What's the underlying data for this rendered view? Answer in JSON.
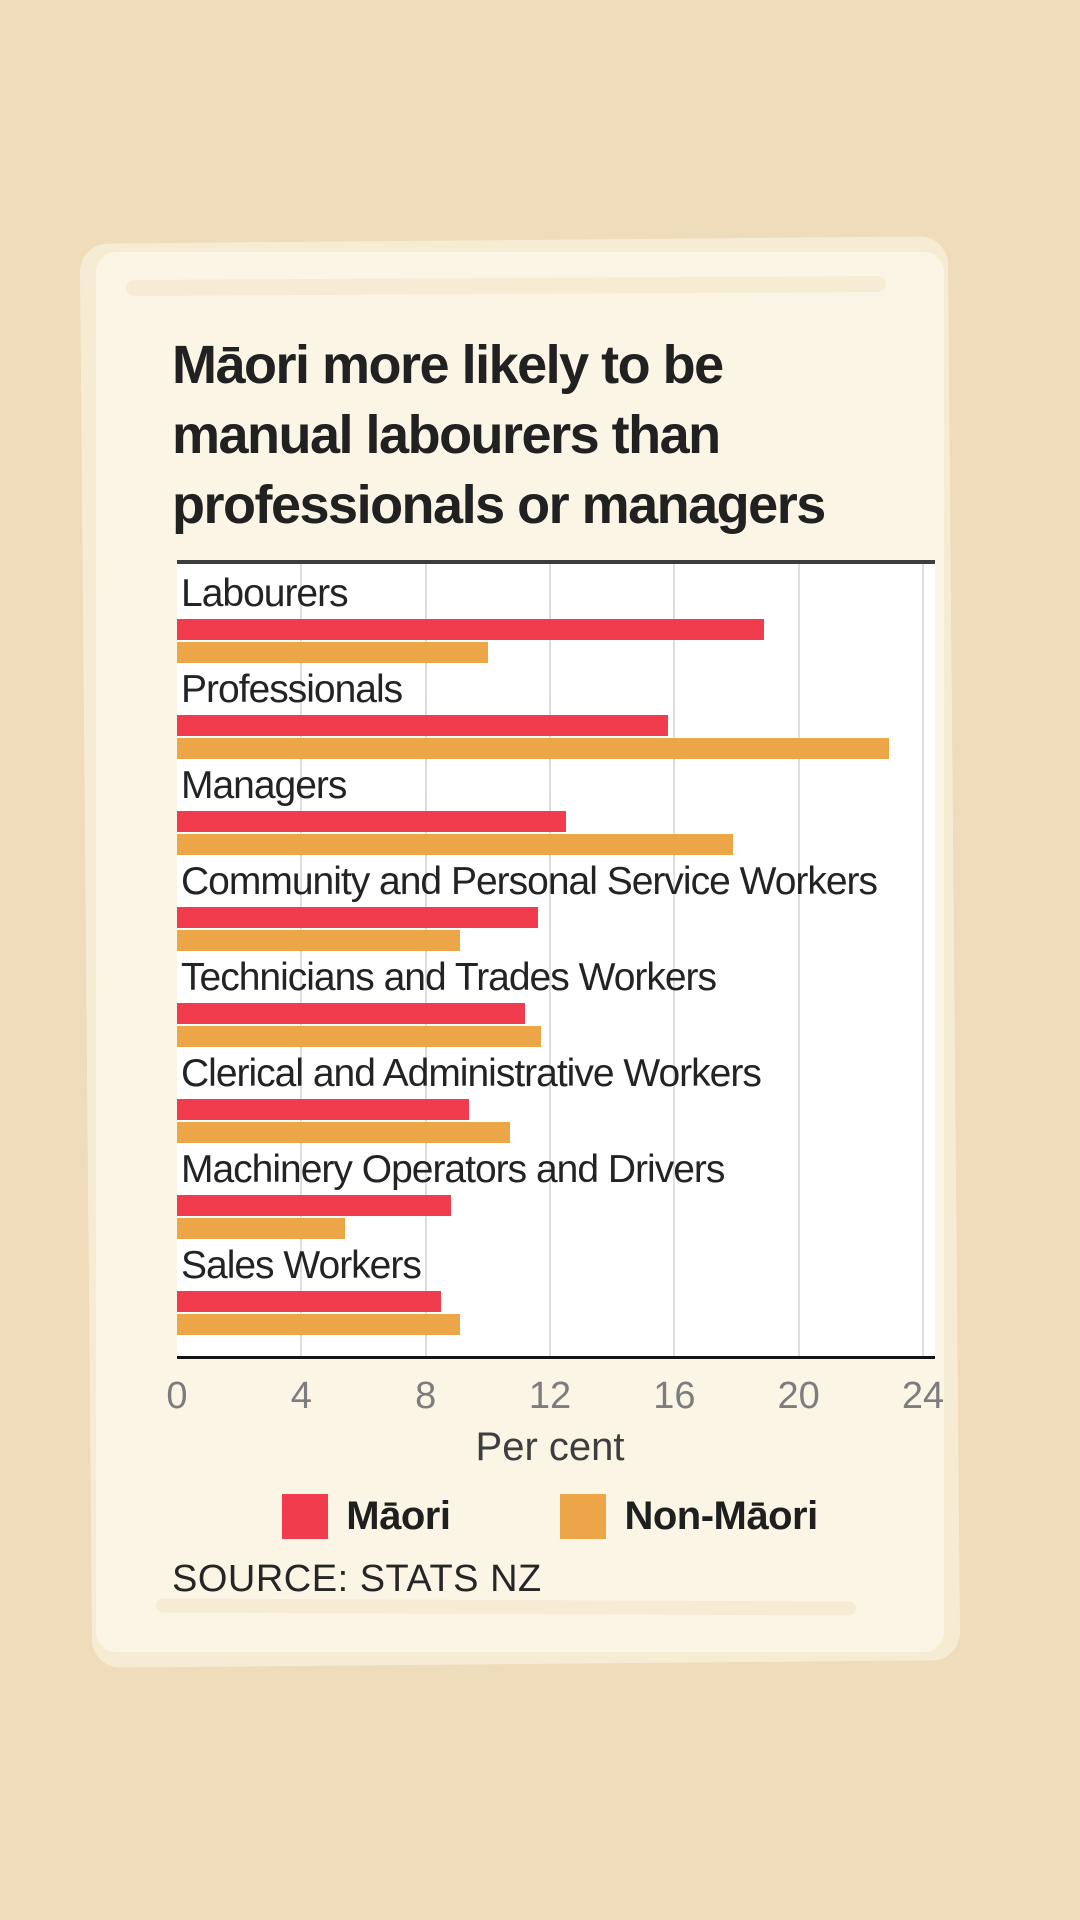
{
  "title": {
    "lines": [
      "Māori more likely to be",
      "manual labourers than",
      "professionals or managers"
    ]
  },
  "chart_data": {
    "type": "bar",
    "orientation": "horizontal",
    "title": "Māori more likely to be manual labourers than professionals or managers",
    "categories": [
      "Labourers",
      "Professionals",
      "Managers",
      "Community and Personal Service Workers",
      "Technicians and Trades Workers",
      "Clerical and Administrative Workers",
      "Machinery Operators and Drivers",
      "Sales Workers"
    ],
    "series": [
      {
        "name": "Māori",
        "color": "#f03c4d",
        "values": [
          18.9,
          15.8,
          12.5,
          11.6,
          11.2,
          9.4,
          8.8,
          8.5
        ]
      },
      {
        "name": "Non-Māori",
        "color": "#eda647",
        "values": [
          10.0,
          22.9,
          17.9,
          9.1,
          11.7,
          10.7,
          5.4,
          9.1
        ]
      }
    ],
    "xlabel": "Per cent",
    "xlim": [
      0,
      24
    ],
    "xticks": [
      0,
      4,
      8,
      12,
      16,
      20,
      24
    ],
    "grid": true,
    "legend_position": "bottom"
  },
  "legend": {
    "items": [
      {
        "label": "Māori",
        "color": "#f03c4d"
      },
      {
        "label": "Non-Māori",
        "color": "#eda647"
      }
    ]
  },
  "source": "SOURCE: STATS NZ",
  "colors": {
    "page_background": "#eedcbb",
    "panel_background": "#fbf5e5",
    "plot_background": "#ffffff",
    "maori": "#f03c4d",
    "non_maori": "#eda647",
    "gridline": "#dedede",
    "tick_text": "#7d7d7d",
    "text": "#212121"
  }
}
